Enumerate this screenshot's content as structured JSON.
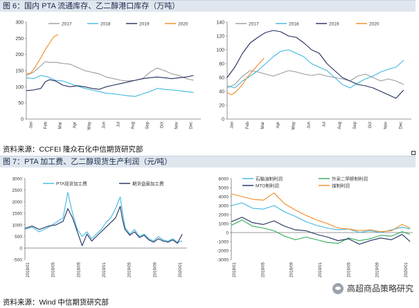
{
  "fig6": {
    "title": "图 6：国内 PTA 流通库存、乙二醇港口库存（万吨）",
    "source": "资料来源：CCFEI 隆众石化中信期货研究部"
  },
  "fig7": {
    "title": "图 7：PTA 加工费、乙二醇现货生产利润（元/吨）",
    "source": "资料来源：Wind 中信期货研究部"
  },
  "watermark": {
    "text": "高超商品策略研究"
  },
  "chart_data": [
    {
      "id": "pta-inventory",
      "type": "line",
      "title": "",
      "ylim": [
        0,
        300
      ],
      "yticks": [
        0,
        50,
        100,
        150,
        200,
        250,
        300
      ],
      "x_labels": [
        "Jan",
        "Feb",
        "Mar",
        "Apr",
        "May",
        "Jun",
        "Jul",
        "Aug",
        "Sep",
        "Oct",
        "Nov",
        "Dec"
      ],
      "legend": [
        "2017",
        "2018",
        "2019",
        "2020"
      ],
      "series": [
        {
          "name": "2017",
          "color": "#9b9b9b",
          "x": [
            0,
            0.5,
            1,
            1.3,
            1.6,
            2,
            2.5,
            3,
            3.5,
            4,
            4.5,
            5,
            5.5,
            6,
            6.5,
            7,
            7.5,
            8,
            8.5,
            9,
            9.5,
            10,
            10.5,
            11,
            11.5
          ],
          "values": [
            135,
            145,
            165,
            178,
            175,
            176,
            172,
            170,
            160,
            150,
            145,
            140,
            130,
            125,
            120,
            118,
            120,
            125,
            145,
            158,
            150,
            140,
            135,
            125,
            120
          ]
        },
        {
          "name": "2018",
          "color": "#3fb6e0",
          "x": [
            0,
            0.5,
            1,
            1.5,
            2,
            2.5,
            3,
            3.5,
            4,
            4.5,
            5,
            5.5,
            6,
            6.5,
            7,
            7.5,
            8,
            8.5,
            9,
            9.5,
            10,
            10.5,
            11,
            11.5
          ],
          "values": [
            128,
            125,
            135,
            130,
            120,
            118,
            110,
            102,
            95,
            90,
            85,
            80,
            78,
            75,
            72,
            70,
            78,
            85,
            95,
            92,
            90,
            88,
            85,
            82
          ]
        },
        {
          "name": "2019",
          "color": "#1f2d5a",
          "x": [
            0,
            0.5,
            1,
            1.3,
            1.6,
            2,
            2.5,
            3,
            3.5,
            4,
            4.5,
            5,
            5.5,
            6,
            6.5,
            7,
            7.5,
            8,
            8.5,
            9,
            9.5,
            10,
            10.5,
            11,
            11.5
          ],
          "values": [
            88,
            90,
            95,
            115,
            122,
            118,
            105,
            100,
            103,
            100,
            95,
            92,
            100,
            105,
            110,
            115,
            120,
            125,
            128,
            130,
            128,
            125,
            128,
            130,
            135
          ]
        },
        {
          "name": "2020",
          "color": "#f08a24",
          "x": [
            0,
            0.3,
            0.6,
            1,
            1.3,
            1.6,
            1.9,
            2.2
          ],
          "values": [
            140,
            142,
            160,
            190,
            215,
            235,
            255,
            262
          ]
        }
      ]
    },
    {
      "id": "meg-port-inventory",
      "type": "line",
      "title": "",
      "ylim": [
        0,
        140
      ],
      "yticks": [
        0,
        20,
        40,
        60,
        80,
        100,
        120,
        140
      ],
      "x_labels": [
        "Jan",
        "Feb",
        "Mar",
        "Apr",
        "May",
        "Jun",
        "Jul",
        "Aug",
        "Sep",
        "Oct",
        "Nov",
        "Dec"
      ],
      "legend": [
        "2017",
        "2018",
        "2019",
        "2020"
      ],
      "series": [
        {
          "name": "2017",
          "color": "#9b9b9b",
          "x": [
            0,
            0.5,
            1,
            1.5,
            2,
            2.5,
            3,
            3.5,
            4,
            4.5,
            5,
            5.5,
            6,
            6.5,
            7,
            7.5,
            8,
            8.5,
            9,
            9.5,
            10,
            10.5,
            11,
            11.5
          ],
          "values": [
            45,
            50,
            62,
            70,
            68,
            65,
            62,
            66,
            70,
            68,
            65,
            63,
            65,
            62,
            60,
            58,
            55,
            62,
            65,
            60,
            55,
            58,
            55,
            50
          ]
        },
        {
          "name": "2018",
          "color": "#3fb6e0",
          "x": [
            0,
            0.5,
            1,
            1.5,
            2,
            2.5,
            3,
            3.5,
            4,
            4.5,
            5,
            5.5,
            6,
            6.5,
            7,
            7.5,
            8,
            8.5,
            9,
            9.5,
            10,
            10.5,
            11,
            11.5
          ],
          "values": [
            48,
            45,
            55,
            62,
            70,
            80,
            90,
            98,
            100,
            95,
            90,
            80,
            75,
            70,
            60,
            50,
            45,
            52,
            58,
            62,
            68,
            72,
            75,
            85
          ]
        },
        {
          "name": "2019",
          "color": "#1f2d5a",
          "x": [
            0,
            0.5,
            1,
            1.5,
            2,
            2.5,
            3,
            3.5,
            4,
            4.5,
            5,
            5.5,
            6,
            6.5,
            7,
            7.5,
            8,
            8.5,
            9,
            9.5,
            10,
            10.5,
            11,
            11.5
          ],
          "values": [
            60,
            75,
            95,
            110,
            118,
            125,
            128,
            126,
            120,
            118,
            110,
            100,
            95,
            80,
            70,
            60,
            55,
            50,
            48,
            45,
            40,
            35,
            30,
            42
          ]
        },
        {
          "name": "2020",
          "color": "#f08a24",
          "x": [
            0,
            0.3,
            0.6,
            1,
            1.3,
            1.6,
            2,
            2.4
          ],
          "values": [
            38,
            35,
            40,
            50,
            60,
            68,
            78,
            88
          ]
        }
      ]
    },
    {
      "id": "pta-processing-fee",
      "type": "line",
      "ylim": [
        -500,
        3000
      ],
      "yticks": [
        -500,
        0,
        500,
        1000,
        1500,
        2000,
        2500,
        3000
      ],
      "x_labels": [
        "2018/01",
        "2018/05",
        "2018/09",
        "2019/01",
        "2019/05",
        "2019/09",
        "2020/01"
      ],
      "legend": [
        "PTA现货加工费",
        "期货盘面加工费"
      ],
      "series": [
        {
          "name": "PTA现货加工费",
          "color": "#3fb6e0",
          "x": [
            0,
            0.3,
            0.6,
            1,
            1.3,
            1.6,
            1.8,
            2,
            2.2,
            2.4,
            2.6,
            2.8,
            3,
            3.2,
            3.4,
            3.6,
            3.8,
            4,
            4.1,
            4.2,
            4.4,
            4.6,
            4.8,
            5,
            5.2,
            5.4,
            5.6,
            5.8,
            6,
            6.2,
            6.4,
            6.6
          ],
          "values": [
            800,
            900,
            700,
            900,
            1100,
            1300,
            2400,
            1500,
            800,
            500,
            700,
            400,
            600,
            800,
            1100,
            1300,
            1700,
            2200,
            1500,
            900,
            600,
            800,
            500,
            600,
            400,
            300,
            500,
            350,
            300,
            400,
            250,
            300
          ]
        },
        {
          "name": "期货盘面加工费",
          "color": "#1f2d5a",
          "x": [
            0,
            0.3,
            0.6,
            1,
            1.3,
            1.6,
            1.8,
            2,
            2.2,
            2.4,
            2.6,
            2.8,
            3,
            3.2,
            3.4,
            3.6,
            3.8,
            4,
            4.1,
            4.2,
            4.4,
            4.6,
            4.8,
            5,
            5.2,
            5.4,
            5.6,
            5.8,
            6,
            6.2,
            6.4,
            6.6
          ],
          "values": [
            850,
            950,
            800,
            950,
            1000,
            1150,
            1700,
            1300,
            700,
            100,
            600,
            300,
            500,
            700,
            900,
            1100,
            1300,
            1800,
            1200,
            800,
            550,
            700,
            450,
            550,
            350,
            250,
            400,
            300,
            250,
            350,
            200,
            600
          ]
        }
      ]
    },
    {
      "id": "meg-profit",
      "type": "line",
      "ylim": [
        -3000,
        6000
      ],
      "yticks": [
        -3000,
        -2000,
        -1000,
        0,
        1000,
        2000,
        3000,
        4000,
        5000,
        6000
      ],
      "x_labels": [
        "2018/01",
        "2018/05",
        "2018/09",
        "2019/01",
        "2019/05",
        "2019/09",
        "2020/01"
      ],
      "legend": [
        "石脑油制利润",
        "外采二甲醇制利润",
        "MTO制利润",
        "煤制利润"
      ],
      "series": [
        {
          "name": "石脑油制利润",
          "color": "#3fb6e0",
          "x": [
            0,
            0.4,
            0.8,
            1.2,
            1.6,
            2,
            2.4,
            2.8,
            3.2,
            3.6,
            4,
            4.4,
            4.8,
            5.2,
            5.6,
            6,
            6.4,
            6.7
          ],
          "values": [
            3000,
            3300,
            2700,
            2600,
            3000,
            2300,
            1800,
            1200,
            800,
            500,
            300,
            400,
            0,
            200,
            0,
            300,
            600,
            400
          ]
        },
        {
          "name": "外采二甲醇制利润",
          "color": "#2eaa57",
          "x": [
            0,
            0.4,
            0.8,
            1.2,
            1.6,
            2,
            2.4,
            2.8,
            3.2,
            3.6,
            4,
            4.4,
            4.8,
            5.2,
            5.6,
            6,
            6.4,
            6.7
          ],
          "values": [
            800,
            1400,
            700,
            500,
            200,
            -400,
            -800,
            -500,
            -800,
            -1100,
            -1200,
            -600,
            -900,
            -700,
            -300,
            -400,
            100,
            -200
          ]
        },
        {
          "name": "MTO制利润",
          "color": "#1f2d5a",
          "x": [
            0,
            0.4,
            0.8,
            1.2,
            1.6,
            2,
            2.4,
            2.8,
            3.2,
            3.6,
            4,
            4.4,
            4.8,
            5.2,
            5.6,
            6,
            6.4,
            6.7
          ],
          "values": [
            1200,
            1700,
            1100,
            900,
            1300,
            700,
            300,
            200,
            -200,
            -500,
            -900,
            -700,
            -1300,
            -900,
            -600,
            -800,
            -200,
            -1000
          ]
        },
        {
          "name": "煤制利润",
          "color": "#f08a24",
          "x": [
            0,
            0.4,
            0.8,
            1.2,
            1.6,
            2,
            2.4,
            2.8,
            3.2,
            3.6,
            4,
            4.4,
            4.8,
            5.2,
            5.6,
            6,
            6.4,
            6.7
          ],
          "values": [
            4300,
            4000,
            3700,
            3600,
            4400,
            3200,
            2500,
            1900,
            1400,
            1000,
            500,
            400,
            200,
            300,
            100,
            200,
            900,
            500
          ]
        }
      ]
    }
  ]
}
